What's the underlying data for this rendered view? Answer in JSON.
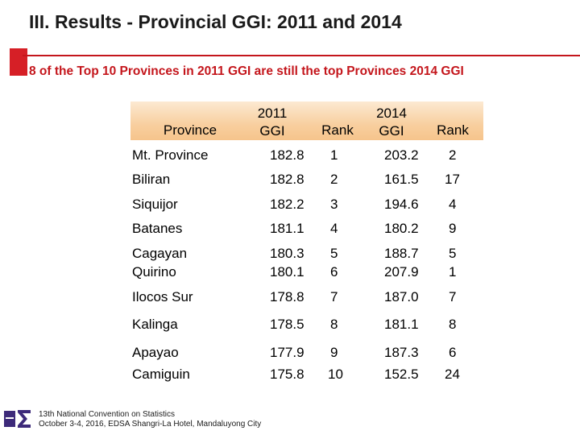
{
  "title": "III. Results - Provincial GGI: 2011 and 2014",
  "subtitle": "8 of the Top 10 Provinces in 2011 GGI are still the top Provinces 2014 GGI",
  "table": {
    "headers": {
      "province": "Province",
      "ggi2011_line1": "2011",
      "ggi2011_line2": "GGI",
      "rank2011": "Rank",
      "ggi2014_line1": "2014",
      "ggi2014_line2": "GGI",
      "rank2014": "Rank"
    },
    "rows": [
      {
        "province": "Mt. Province",
        "ggi2011": "182.8",
        "rank2011": "1",
        "ggi2014": "203.2",
        "rank2014": "2"
      },
      {
        "province": "Biliran",
        "ggi2011": "182.8",
        "rank2011": "2",
        "ggi2014": "161.5",
        "rank2014": "17"
      },
      {
        "province": "Siquijor",
        "ggi2011": "182.2",
        "rank2011": "3",
        "ggi2014": "194.6",
        "rank2014": "4"
      },
      {
        "province": "Batanes",
        "ggi2011": "181.1",
        "rank2011": "4",
        "ggi2014": "180.2",
        "rank2014": "9"
      },
      {
        "province": "Cagayan",
        "ggi2011": "180.3",
        "rank2011": "5",
        "ggi2014": "188.7",
        "rank2014": "5"
      },
      {
        "province": "Quirino",
        "ggi2011": "180.1",
        "rank2011": "6",
        "ggi2014": "207.9",
        "rank2014": "1"
      },
      {
        "province": "Ilocos Sur",
        "ggi2011": "178.8",
        "rank2011": "7",
        "ggi2014": "187.0",
        "rank2014": "7"
      },
      {
        "province": "Kalinga",
        "ggi2011": "178.5",
        "rank2011": "8",
        "ggi2014": "181.1",
        "rank2014": "8"
      },
      {
        "province": "Apayao",
        "ggi2011": "177.9",
        "rank2011": "9",
        "ggi2014": "187.3",
        "rank2014": "6"
      },
      {
        "province": "Camiguin",
        "ggi2011": "175.8",
        "rank2011": "10",
        "ggi2014": "152.5",
        "rank2014": "24"
      }
    ]
  },
  "footer": {
    "logo_icon": "sigma-logo-icon",
    "line1": "13th National Convention on Statistics",
    "line2": "October 3-4, 2016, EDSA Shangri-La Hotel, Mandaluyong City"
  },
  "colors": {
    "accent_red": "#c4161c",
    "header_band": "#f8cf9f",
    "logo_purple": "#3d2a7a"
  }
}
